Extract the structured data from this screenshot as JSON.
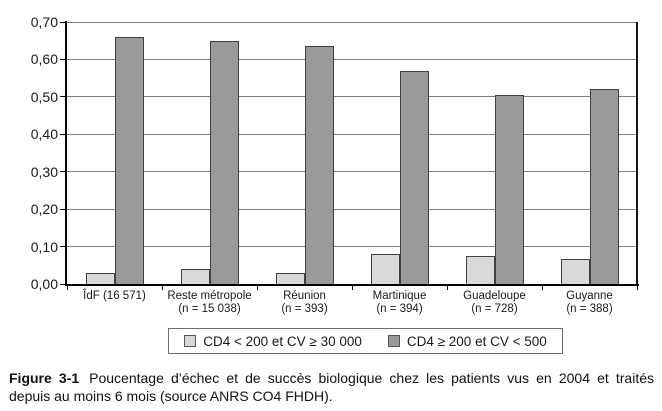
{
  "chart_data": {
    "type": "bar",
    "title": "",
    "categories": [
      "ÎdF (16 571)",
      "Reste métropole",
      "Réunion",
      "Martinique",
      "Guadeloupe",
      "Guyanne"
    ],
    "category_sublabels": [
      "",
      "(n = 15 038)",
      "(n = 393)",
      "(n = 394)",
      "(n = 728)",
      "(n = 388)"
    ],
    "series": [
      {
        "name": "CD4 < 200 et CV ≥ 30 000",
        "color": "#d9d9d9",
        "values": [
          0.03,
          0.04,
          0.03,
          0.08,
          0.076,
          0.068
        ]
      },
      {
        "name": "CD4 ≥ 200 et CV < 500",
        "color": "#999999",
        "values": [
          0.66,
          0.65,
          0.635,
          0.57,
          0.505,
          0.52
        ]
      }
    ],
    "xlabel": "",
    "ylabel": "",
    "ylim": [
      0,
      0.7
    ],
    "ytick_step": 0.1,
    "ytick_labels": [
      "0,00",
      "0,10",
      "0,20",
      "0,30",
      "0,40",
      "0,50",
      "0,60",
      "0,70"
    ],
    "grid": true,
    "legend_position": "bottom-center",
    "colors": {
      "gridline": "#7f7f7f",
      "axis": "#000000",
      "bar_border": "#404040",
      "legend_border": "#6e6e6e",
      "background": "#ffffff"
    }
  },
  "caption": {
    "label": "Figure 3-1",
    "text": "Poucentage d’échec et de succès biologique chez les patients vus en 2004 et traités depuis au moins 6 mois (source ANRS CO4 FHDH)."
  }
}
